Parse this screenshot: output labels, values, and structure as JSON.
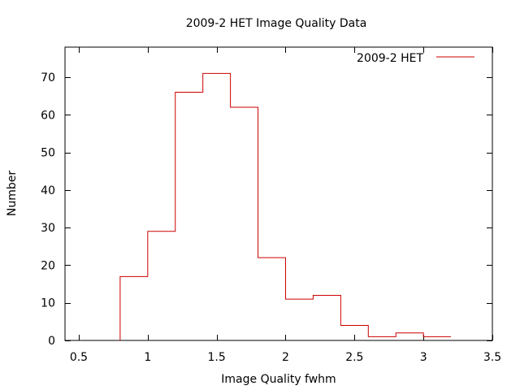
{
  "chart_data": {
    "type": "bar",
    "title": "2009-2 HET Image Quality Data",
    "xlabel": "Image Quality fwhm",
    "ylabel": "Number",
    "xlim": [
      0.4,
      3.5
    ],
    "ylim": [
      0,
      78
    ],
    "xticks": [
      "0.5",
      "1",
      "1.5",
      "2",
      "2.5",
      "3",
      "3.5"
    ],
    "xtick_values": [
      0.5,
      1,
      1.5,
      2,
      2.5,
      3,
      3.5
    ],
    "yticks": [
      "0",
      "10",
      "20",
      "30",
      "40",
      "50",
      "60",
      "70"
    ],
    "ytick_values": [
      0,
      10,
      20,
      30,
      40,
      50,
      60,
      70
    ],
    "grid": false,
    "legend_position": "top-right",
    "series": [
      {
        "name": "2009-2 HET",
        "color": "#cc0000",
        "style": "step histogram",
        "bin_edges": [
          0.8,
          1.0,
          1.2,
          1.4,
          1.6,
          1.8,
          2.0,
          2.2,
          2.4,
          2.6,
          2.8,
          3.0,
          3.2
        ],
        "values": [
          17,
          29,
          66,
          71,
          62,
          22,
          11,
          12,
          4,
          1,
          2,
          1
        ]
      }
    ]
  }
}
